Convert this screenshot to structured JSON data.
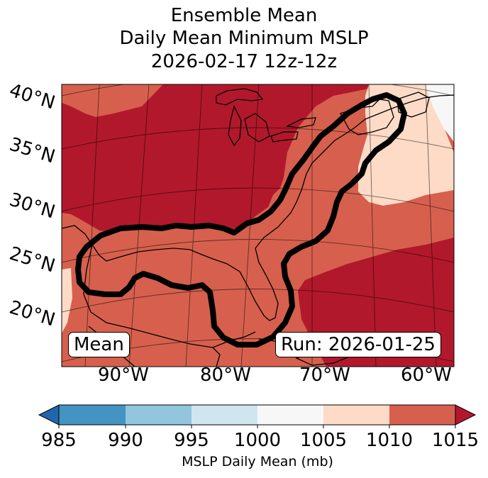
{
  "title": {
    "line1": "Ensemble Mean",
    "line2": "Daily Mean Minimum MSLP",
    "line3": "2026-02-17 12z-12z"
  },
  "map": {
    "latitude_labels": [
      "40°N",
      "35°N",
      "30°N",
      "25°N",
      "20°N"
    ],
    "longitude_labels": [
      "90°W",
      "80°W",
      "70°W",
      "60°W"
    ],
    "stat_label": "Mean",
    "run_label": "Run: 2026-01-25",
    "features": [
      "shaded-mslp-field",
      "coastlines",
      "lat-lon-gridlines",
      "bold-black-contour"
    ]
  },
  "colorbar": {
    "label": "MSLP Daily Mean (mb)",
    "ticks": [
      "985",
      "990",
      "995",
      "1000",
      "1005",
      "1010",
      "1015"
    ],
    "colors": {
      "below": "#2166ac",
      "c985_990": "#4393c3",
      "c990_995": "#92c5de",
      "c995_1000": "#d1e5f0",
      "c1000_1005": "#f7f7f7",
      "c1005_1010": "#fddbc7",
      "c1010_1015": "#d6604d",
      "above": "#b2182b"
    }
  }
}
